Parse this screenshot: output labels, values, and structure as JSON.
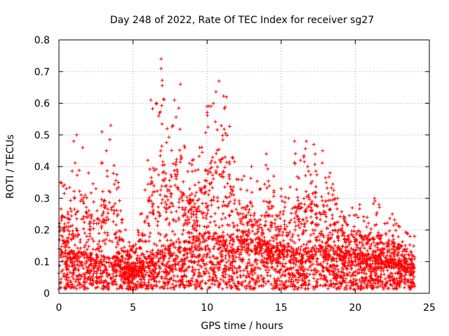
{
  "chart_data": {
    "type": "scatter",
    "title": "Day 248 of 2022, Rate Of TEC Index for receiver sg27",
    "xlabel": "GPS time / hours",
    "ylabel": "ROTI / TECUs",
    "xlim": [
      0,
      25
    ],
    "ylim": [
      0,
      0.8
    ],
    "xticks": [
      "0",
      "5",
      "10",
      "15",
      "20",
      "25"
    ],
    "yticks": [
      "0",
      "0.1",
      "0.2",
      "0.3",
      "0.4",
      "0.5",
      "0.6",
      "0.7",
      "0.8"
    ],
    "grid": true,
    "marker": "+",
    "color": "#ff0000",
    "series": [
      {
        "envelope": {
          "description": "approximate upper envelope of ROTI points vs time",
          "x": [
            0.0,
            0.5,
            1.0,
            1.2,
            1.6,
            2.0,
            2.5,
            2.9,
            3.2,
            3.5,
            4.0,
            4.5,
            5.0,
            5.5,
            6.0,
            6.2,
            6.6,
            6.9,
            7.3,
            7.8,
            8.2,
            8.5,
            9.0,
            9.5,
            10.0,
            10.8,
            11.3,
            12.0,
            12.5,
            13.0,
            13.6,
            14.0,
            14.5,
            15.0,
            15.5,
            15.9,
            16.3,
            16.7,
            17.2,
            17.8,
            18.3,
            18.8,
            19.3,
            19.8,
            20.3,
            20.8,
            21.3,
            21.6,
            22.0,
            22.5,
            23.0,
            23.5,
            24.0
          ],
          "y": [
            0.4,
            0.33,
            0.48,
            0.5,
            0.46,
            0.38,
            0.33,
            0.51,
            0.45,
            0.53,
            0.35,
            0.2,
            0.15,
            0.25,
            0.42,
            0.61,
            0.6,
            0.74,
            0.52,
            0.61,
            0.66,
            0.46,
            0.42,
            0.46,
            0.59,
            0.67,
            0.62,
            0.36,
            0.37,
            0.4,
            0.33,
            0.44,
            0.37,
            0.33,
            0.3,
            0.48,
            0.42,
            0.48,
            0.47,
            0.45,
            0.38,
            0.3,
            0.24,
            0.27,
            0.28,
            0.24,
            0.3,
            0.28,
            0.22,
            0.25,
            0.21,
            0.19,
            0.18
          ]
        },
        "baseline": {
          "description": "approximate typical (median) ROTI level vs time",
          "x": [
            0,
            2,
            4,
            5,
            6,
            8,
            10,
            12,
            14,
            16,
            18,
            20,
            22,
            24
          ],
          "y": [
            0.1,
            0.09,
            0.08,
            0.05,
            0.08,
            0.12,
            0.14,
            0.13,
            0.12,
            0.1,
            0.11,
            0.09,
            0.08,
            0.06
          ]
        },
        "x_range": [
          0,
          24
        ]
      }
    ]
  }
}
